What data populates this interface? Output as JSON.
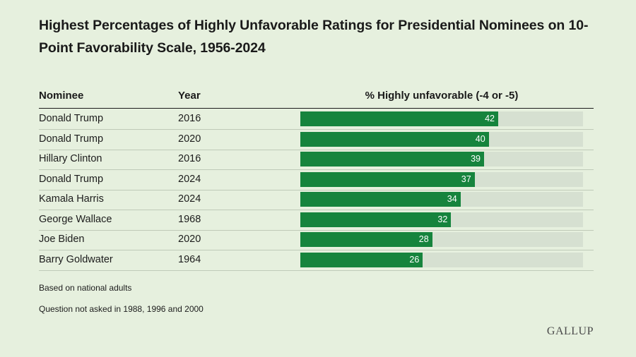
{
  "title": "Highest Percentages of Highly Unfavorable Ratings for Presidential Nominees on 10-Point Favorability Scale, 1956-2024",
  "headers": {
    "nominee": "Nominee",
    "year": "Year",
    "metric": "% Highly unfavorable (-4 or -5)"
  },
  "notes": [
    "Based on national adults",
    "Question not asked in 1988, 1996 and 2000"
  ],
  "logo": "GALLUP",
  "colors": {
    "background": "#e6f0de",
    "bar": "#16843d",
    "track": "#d6e0d1"
  },
  "chart_data": {
    "type": "bar",
    "orientation": "horizontal",
    "title": "Highest Percentages of Highly Unfavorable Ratings for Presidential Nominees on 10-Point Favorability Scale, 1956-2024",
    "value_label": "% Highly unfavorable (-4 or -5)",
    "xlim": [
      0,
      60
    ],
    "rows": [
      {
        "nominee": "Donald Trump",
        "year": "2016",
        "value": 42
      },
      {
        "nominee": "Donald Trump",
        "year": "2020",
        "value": 40
      },
      {
        "nominee": "Hillary Clinton",
        "year": "2016",
        "value": 39
      },
      {
        "nominee": "Donald Trump",
        "year": "2024",
        "value": 37
      },
      {
        "nominee": "Kamala Harris",
        "year": "2024",
        "value": 34
      },
      {
        "nominee": "George Wallace",
        "year": "1968",
        "value": 32
      },
      {
        "nominee": "Joe Biden",
        "year": "2020",
        "value": 28
      },
      {
        "nominee": "Barry Goldwater",
        "year": "1964",
        "value": 26
      }
    ]
  }
}
